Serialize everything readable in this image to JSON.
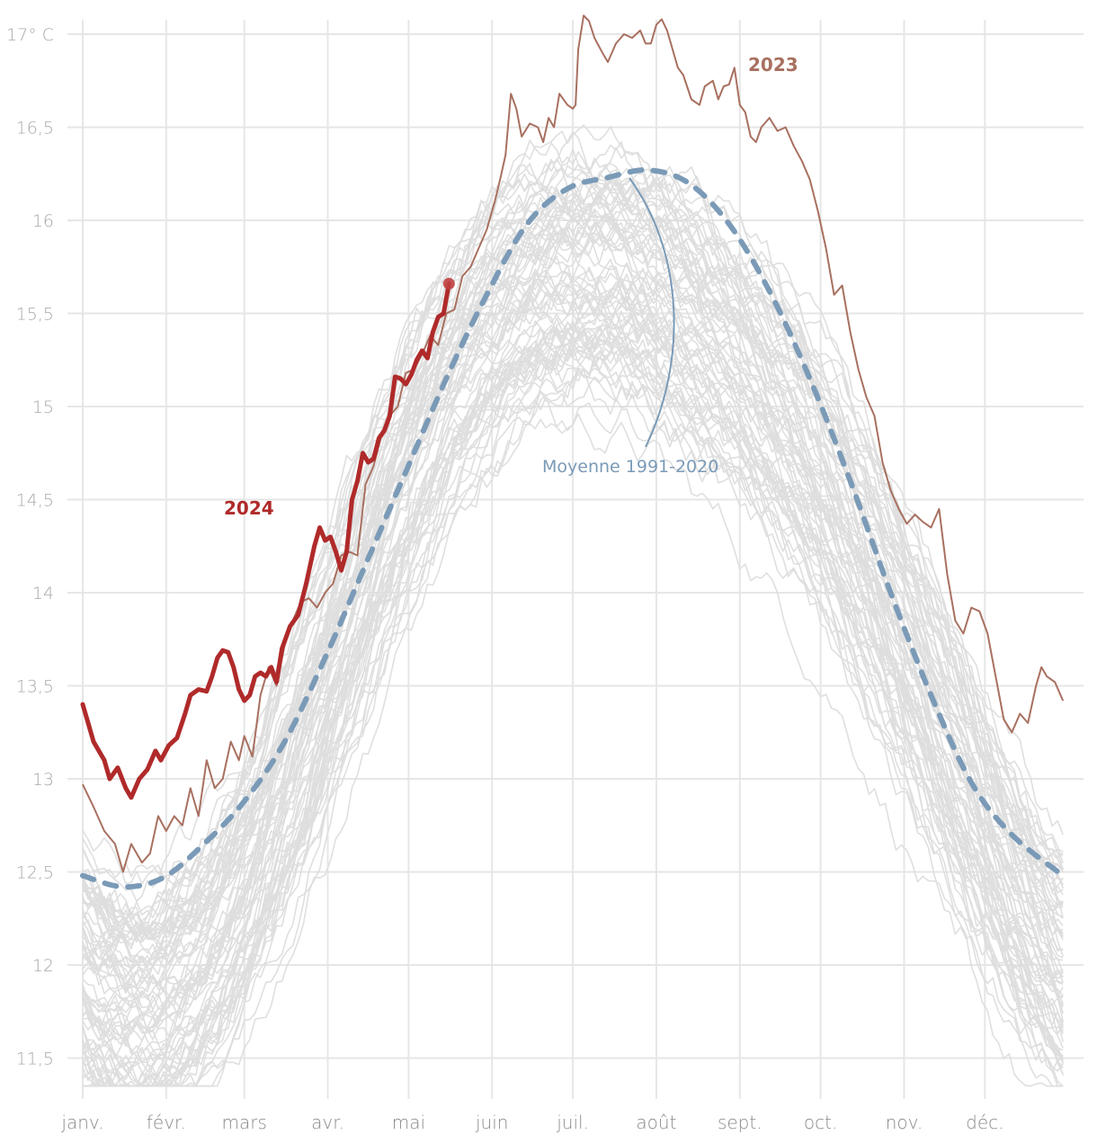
{
  "chart_data": {
    "type": "line",
    "title": "",
    "xlabel": "",
    "ylabel": "°C",
    "ylim": [
      11.3,
      17.1
    ],
    "grid": true,
    "y_ticks": [
      {
        "value": 17,
        "label": "17° C"
      },
      {
        "value": 16.5,
        "label": "16,5"
      },
      {
        "value": 16,
        "label": "16"
      },
      {
        "value": 15.5,
        "label": "15,5"
      },
      {
        "value": 15,
        "label": "15"
      },
      {
        "value": 14.5,
        "label": "14,5"
      },
      {
        "value": 14,
        "label": "14"
      },
      {
        "value": 13.5,
        "label": "13,5"
      },
      {
        "value": 13,
        "label": "13"
      },
      {
        "value": 12.5,
        "label": "12,5"
      },
      {
        "value": 12,
        "label": "12"
      },
      {
        "value": 11.5,
        "label": "11,5"
      }
    ],
    "x_ticks": [
      {
        "day": 0,
        "label": "janv."
      },
      {
        "day": 31,
        "label": "févr."
      },
      {
        "day": 60,
        "label": "mars"
      },
      {
        "day": 91,
        "label": "avr."
      },
      {
        "day": 121,
        "label": "mai"
      },
      {
        "day": 152,
        "label": "juin"
      },
      {
        "day": 182,
        "label": "juil."
      },
      {
        "day": 213,
        "label": "août"
      },
      {
        "day": 244,
        "label": "sept."
      },
      {
        "day": 274,
        "label": "oct."
      },
      {
        "day": 305,
        "label": "nov."
      },
      {
        "day": 335,
        "label": "déc."
      }
    ],
    "series": [
      {
        "name": "2024",
        "color": "#b02a2a",
        "label": "2024",
        "points": [
          [
            0,
            13.4
          ],
          [
            4,
            13.2
          ],
          [
            8,
            13.1
          ],
          [
            10,
            13.0
          ],
          [
            13,
            13.06
          ],
          [
            16,
            12.95
          ],
          [
            18,
            12.9
          ],
          [
            21,
            13.0
          ],
          [
            24,
            13.05
          ],
          [
            27,
            13.15
          ],
          [
            29,
            13.1
          ],
          [
            32,
            13.18
          ],
          [
            35,
            13.22
          ],
          [
            38,
            13.35
          ],
          [
            40,
            13.45
          ],
          [
            43,
            13.48
          ],
          [
            46,
            13.47
          ],
          [
            48,
            13.55
          ],
          [
            50,
            13.65
          ],
          [
            52,
            13.69
          ],
          [
            54,
            13.68
          ],
          [
            56,
            13.6
          ],
          [
            58,
            13.48
          ],
          [
            60,
            13.42
          ],
          [
            62,
            13.45
          ],
          [
            64,
            13.55
          ],
          [
            66,
            13.57
          ],
          [
            68,
            13.55
          ],
          [
            70,
            13.6
          ],
          [
            72,
            13.52
          ],
          [
            74,
            13.7
          ],
          [
            77,
            13.82
          ],
          [
            80,
            13.88
          ],
          [
            83,
            14.05
          ],
          [
            86,
            14.25
          ],
          [
            88,
            14.35
          ],
          [
            90,
            14.28
          ],
          [
            92,
            14.3
          ],
          [
            94,
            14.22
          ],
          [
            96,
            14.12
          ],
          [
            98,
            14.22
          ],
          [
            100,
            14.5
          ],
          [
            102,
            14.6
          ],
          [
            104,
            14.75
          ],
          [
            106,
            14.7
          ],
          [
            108,
            14.72
          ],
          [
            110,
            14.83
          ],
          [
            112,
            14.87
          ],
          [
            114,
            14.95
          ],
          [
            116,
            15.16
          ],
          [
            118,
            15.15
          ],
          [
            120,
            15.12
          ],
          [
            122,
            15.17
          ],
          [
            124,
            15.25
          ],
          [
            126,
            15.3
          ],
          [
            128,
            15.26
          ],
          [
            130,
            15.4
          ],
          [
            132,
            15.48
          ],
          [
            134,
            15.5
          ],
          [
            136,
            15.66
          ]
        ],
        "end_marker": {
          "day": 136,
          "value": 15.66
        }
      },
      {
        "name": "2023",
        "color": "#a87060",
        "label": "2023",
        "points": [
          [
            0,
            12.97
          ],
          [
            4,
            12.85
          ],
          [
            8,
            12.72
          ],
          [
            12,
            12.65
          ],
          [
            15,
            12.5
          ],
          [
            18,
            12.65
          ],
          [
            22,
            12.55
          ],
          [
            25,
            12.6
          ],
          [
            28,
            12.8
          ],
          [
            31,
            12.72
          ],
          [
            34,
            12.8
          ],
          [
            37,
            12.75
          ],
          [
            40,
            12.95
          ],
          [
            43,
            12.8
          ],
          [
            46,
            13.1
          ],
          [
            49,
            12.95
          ],
          [
            52,
            13.0
          ],
          [
            55,
            13.2
          ],
          [
            58,
            13.1
          ],
          [
            60,
            13.23
          ],
          [
            63,
            13.12
          ],
          [
            66,
            13.45
          ],
          [
            69,
            13.6
          ],
          [
            72,
            13.5
          ],
          [
            75,
            13.72
          ],
          [
            78,
            13.85
          ],
          [
            81,
            13.95
          ],
          [
            84,
            13.97
          ],
          [
            87,
            13.92
          ],
          [
            90,
            14.0
          ],
          [
            93,
            14.05
          ],
          [
            96,
            14.2
          ],
          [
            99,
            14.22
          ],
          [
            102,
            14.2
          ],
          [
            105,
            14.58
          ],
          [
            108,
            14.68
          ],
          [
            111,
            14.85
          ],
          [
            114,
            14.95
          ],
          [
            117,
            15.0
          ],
          [
            120,
            15.18
          ],
          [
            123,
            15.2
          ],
          [
            126,
            15.28
          ],
          [
            129,
            15.38
          ],
          [
            132,
            15.33
          ],
          [
            135,
            15.5
          ],
          [
            138,
            15.52
          ],
          [
            141,
            15.7
          ],
          [
            144,
            15.75
          ],
          [
            147,
            15.85
          ],
          [
            150,
            15.95
          ],
          [
            153,
            16.1
          ],
          [
            155,
            16.22
          ],
          [
            157,
            16.35
          ],
          [
            159,
            16.68
          ],
          [
            161,
            16.6
          ],
          [
            163,
            16.45
          ],
          [
            166,
            16.52
          ],
          [
            169,
            16.5
          ],
          [
            171,
            16.42
          ],
          [
            173,
            16.55
          ],
          [
            175,
            16.5
          ],
          [
            177,
            16.68
          ],
          [
            180,
            16.62
          ],
          [
            182,
            16.6
          ],
          [
            183,
            16.62
          ],
          [
            184,
            16.92
          ],
          [
            186,
            17.1
          ],
          [
            188,
            17.07
          ],
          [
            190,
            16.98
          ],
          [
            193,
            16.9
          ],
          [
            195,
            16.85
          ],
          [
            198,
            16.95
          ],
          [
            201,
            17.0
          ],
          [
            204,
            16.98
          ],
          [
            207,
            17.02
          ],
          [
            209,
            16.95
          ],
          [
            211,
            16.95
          ],
          [
            213,
            17.05
          ],
          [
            215,
            17.08
          ],
          [
            217,
            17.02
          ],
          [
            219,
            16.92
          ],
          [
            221,
            16.82
          ],
          [
            223,
            16.78
          ],
          [
            226,
            16.65
          ],
          [
            229,
            16.62
          ],
          [
            231,
            16.72
          ],
          [
            234,
            16.75
          ],
          [
            236,
            16.65
          ],
          [
            238,
            16.72
          ],
          [
            240,
            16.73
          ],
          [
            242,
            16.82
          ],
          [
            244,
            16.62
          ],
          [
            246,
            16.58
          ],
          [
            248,
            16.45
          ],
          [
            250,
            16.42
          ],
          [
            252,
            16.5
          ],
          [
            255,
            16.55
          ],
          [
            258,
            16.48
          ],
          [
            261,
            16.5
          ],
          [
            264,
            16.4
          ],
          [
            267,
            16.32
          ],
          [
            270,
            16.22
          ],
          [
            273,
            16.05
          ],
          [
            276,
            15.85
          ],
          [
            279,
            15.6
          ],
          [
            282,
            15.65
          ],
          [
            285,
            15.4
          ],
          [
            288,
            15.2
          ],
          [
            291,
            15.05
          ],
          [
            294,
            14.95
          ],
          [
            297,
            14.7
          ],
          [
            300,
            14.55
          ],
          [
            303,
            14.45
          ],
          [
            306,
            14.37
          ],
          [
            309,
            14.42
          ],
          [
            312,
            14.38
          ],
          [
            315,
            14.35
          ],
          [
            318,
            14.45
          ],
          [
            321,
            14.1
          ],
          [
            324,
            13.85
          ],
          [
            327,
            13.78
          ],
          [
            330,
            13.92
          ],
          [
            333,
            13.9
          ],
          [
            336,
            13.78
          ],
          [
            339,
            13.55
          ],
          [
            342,
            13.32
          ],
          [
            345,
            13.25
          ],
          [
            348,
            13.35
          ],
          [
            351,
            13.3
          ],
          [
            354,
            13.5
          ],
          [
            356,
            13.6
          ],
          [
            358,
            13.55
          ],
          [
            361,
            13.52
          ],
          [
            364,
            13.42
          ]
        ]
      },
      {
        "name": "Moyenne 1991-2020",
        "color": "#7a9ab7",
        "dashed": true,
        "label": "Moyenne 1991-2020",
        "points": [
          [
            0,
            12.48
          ],
          [
            15,
            12.42
          ],
          [
            30,
            12.47
          ],
          [
            45,
            12.65
          ],
          [
            60,
            12.88
          ],
          [
            75,
            13.2
          ],
          [
            90,
            13.65
          ],
          [
            105,
            14.15
          ],
          [
            120,
            14.65
          ],
          [
            135,
            15.15
          ],
          [
            150,
            15.6
          ],
          [
            165,
            15.98
          ],
          [
            180,
            16.17
          ],
          [
            195,
            16.23
          ],
          [
            210,
            16.27
          ],
          [
            225,
            16.2
          ],
          [
            240,
            15.98
          ],
          [
            255,
            15.62
          ],
          [
            270,
            15.15
          ],
          [
            285,
            14.6
          ],
          [
            300,
            14.0
          ],
          [
            315,
            13.45
          ],
          [
            330,
            12.98
          ],
          [
            345,
            12.7
          ],
          [
            364,
            12.48
          ]
        ]
      }
    ],
    "background_series": {
      "description": "Années antérieures (gris clair)",
      "color": "#dddddd",
      "count": 80,
      "range_jan": [
        11.4,
        13.0
      ],
      "range_summer": [
        15.3,
        16.8
      ],
      "range_dec": [
        11.4,
        13.1
      ]
    },
    "annotations": [
      {
        "text": "2024",
        "x_day": 53,
        "value": 14.5
      },
      {
        "text": "2023",
        "x_day": 246,
        "value": 16.85
      },
      {
        "text": "Moyenne 1991-2020",
        "x_day": 205,
        "value": 14.68,
        "pointer_to_day": 203,
        "pointer_to_value": 16.23
      }
    ]
  },
  "labels": {
    "y_unit": "17° C",
    "label_2024": "2024",
    "label_2023": "2023",
    "label_avg": "Moyenne 1991-2020"
  }
}
